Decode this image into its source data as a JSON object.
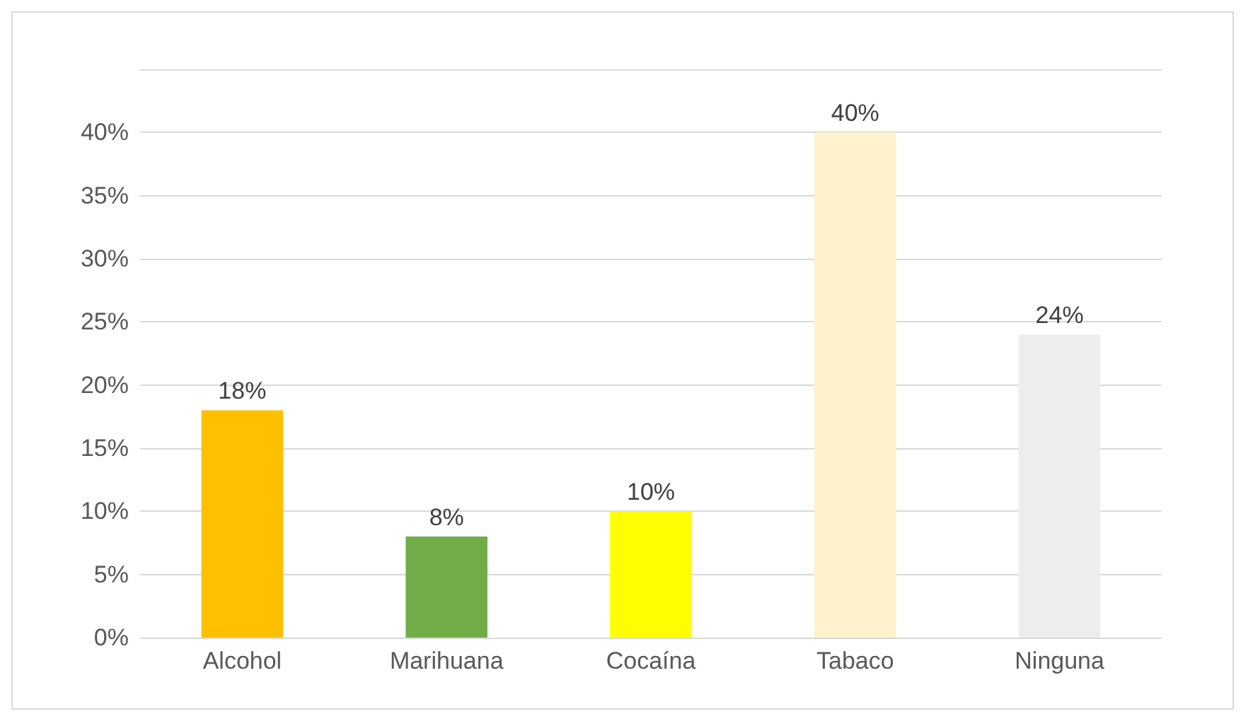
{
  "chart_data": {
    "type": "bar",
    "categories": [
      "Alcohol",
      "Marihuana",
      "Cocaína",
      "Tabaco",
      "Ninguna"
    ],
    "values": [
      18,
      8,
      10,
      40,
      24
    ],
    "colors": [
      "#ffc000",
      "#70ad47",
      "#ffff00",
      "#fff2cc",
      "#ededed"
    ],
    "value_labels": [
      "18%",
      "8%",
      "10%",
      "40%",
      "24%"
    ],
    "ylim": [
      0,
      45
    ],
    "yticks": [
      {
        "value": 0,
        "label": "0%"
      },
      {
        "value": 5,
        "label": "5%"
      },
      {
        "value": 10,
        "label": "10%"
      },
      {
        "value": 15,
        "label": "15%"
      },
      {
        "value": 20,
        "label": "20%"
      },
      {
        "value": 25,
        "label": "25%"
      },
      {
        "value": 30,
        "label": "30%"
      },
      {
        "value": 35,
        "label": "35%"
      },
      {
        "value": 40,
        "label": "40%"
      },
      {
        "value": 45,
        "label": null
      }
    ],
    "grid": true
  }
}
